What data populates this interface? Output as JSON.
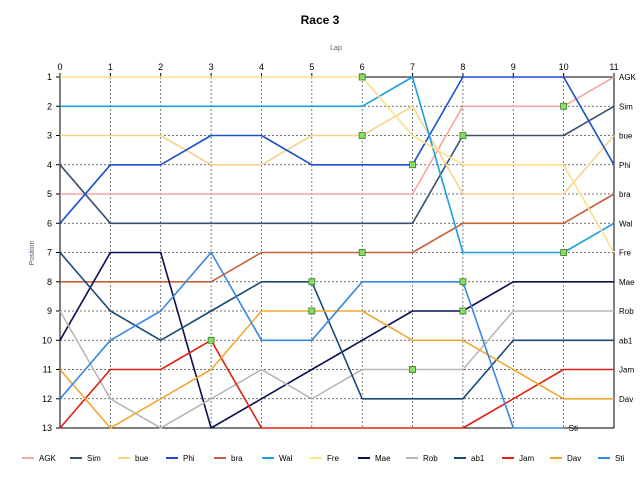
{
  "chart_data": {
    "type": "line",
    "title": "Race 3",
    "xlabel": "Lap",
    "ylabel": "Position",
    "x": [
      0,
      1,
      2,
      3,
      4,
      5,
      6,
      7,
      8,
      9,
      10,
      11
    ],
    "xlim": [
      0,
      11
    ],
    "ylim": [
      1,
      13
    ],
    "y_reversed": true,
    "yticks": [
      1,
      2,
      3,
      4,
      5,
      6,
      7,
      8,
      9,
      10,
      11,
      12,
      13
    ],
    "grid": true,
    "legend": "bottom",
    "series": [
      {
        "name": "AGK",
        "color": "#f4a8a0",
        "values": [
          5,
          5,
          5,
          5,
          5,
          5,
          5,
          5,
          2,
          2,
          2,
          1
        ],
        "end_label": "AGK"
      },
      {
        "name": "Sim",
        "color": "#3a5070",
        "values": [
          4,
          6,
          6,
          6,
          6,
          6,
          6,
          6,
          3,
          3,
          3,
          2
        ],
        "end_label": "Sim"
      },
      {
        "name": "bue",
        "color": "#f7d38a",
        "values": [
          3,
          3,
          3,
          4,
          4,
          3,
          3,
          2,
          5,
          5,
          5,
          3
        ],
        "end_label": "bue"
      },
      {
        "name": "Phi",
        "color": "#1a50d0",
        "values": [
          6,
          4,
          4,
          3,
          3,
          4,
          4,
          4,
          1,
          1,
          1,
          4
        ],
        "end_label": "Phi"
      },
      {
        "name": "bra",
        "color": "#c8603a",
        "values": [
          8,
          8,
          8,
          8,
          7,
          7,
          7,
          7,
          6,
          6,
          6,
          5
        ],
        "end_label": "bra"
      },
      {
        "name": "Wal",
        "color": "#1aa0e0",
        "values": [
          2,
          2,
          2,
          2,
          2,
          2,
          2,
          1,
          7,
          7,
          7,
          6
        ],
        "end_label": "Wal"
      },
      {
        "name": "Fre",
        "color": "#fce08a",
        "values": [
          1,
          1,
          1,
          1,
          1,
          1,
          1,
          3,
          4,
          4,
          4,
          7
        ],
        "end_label": "Fre"
      },
      {
        "name": "Mae",
        "color": "#0a1050",
        "values": [
          10,
          7,
          7,
          13,
          12,
          11,
          10,
          9,
          9,
          8,
          8,
          8
        ],
        "end_label": "Mae"
      },
      {
        "name": "Rob",
        "color": "#b8b8b8",
        "values": [
          9,
          12,
          13,
          12,
          11,
          12,
          11,
          11,
          11,
          9,
          9,
          9
        ],
        "end_label": "Rob"
      },
      {
        "name": "ab1",
        "color": "#1a4a78",
        "values": [
          7,
          9,
          10,
          9,
          8,
          8,
          12,
          12,
          12,
          10,
          10,
          10
        ],
        "end_label": "ab1"
      },
      {
        "name": "Jam",
        "color": "#e02010",
        "values": [
          13,
          11,
          11,
          10,
          13,
          13,
          13,
          13,
          13,
          12,
          11,
          11
        ],
        "end_label": "Jam"
      },
      {
        "name": "Dav",
        "color": "#f0a830",
        "values": [
          11,
          13,
          12,
          11,
          9,
          9,
          9,
          10,
          10,
          11,
          12,
          12
        ],
        "end_label": "Dav"
      },
      {
        "name": "Sti",
        "color": "#3888e0",
        "values": [
          12,
          10,
          9,
          7,
          10,
          10,
          8,
          8,
          8,
          13,
          13,
          null
        ],
        "end_label": "Sti"
      }
    ],
    "markers": [
      {
        "x": 3,
        "y": 10
      },
      {
        "x": 5,
        "y": 8
      },
      {
        "x": 5,
        "y": 9
      },
      {
        "x": 6,
        "y": 1
      },
      {
        "x": 6,
        "y": 3
      },
      {
        "x": 6,
        "y": 7
      },
      {
        "x": 7,
        "y": 4
      },
      {
        "x": 7,
        "y": 11
      },
      {
        "x": 8,
        "y": 3
      },
      {
        "x": 8,
        "y": 8
      },
      {
        "x": 8,
        "y": 9
      },
      {
        "x": 10,
        "y": 2
      },
      {
        "x": 10,
        "y": 7
      }
    ],
    "marker_color": "#88dd66"
  }
}
